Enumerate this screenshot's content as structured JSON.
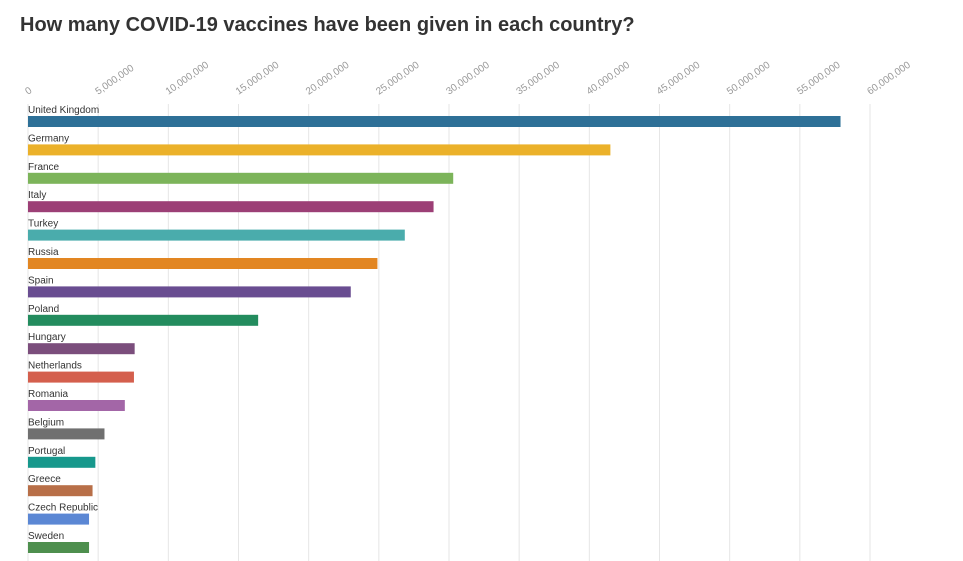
{
  "chart_data": {
    "type": "bar",
    "orientation": "horizontal",
    "title": "How many COVID-19 vaccines have been given in each country?",
    "xlabel": "",
    "ylabel": "",
    "xlim": [
      0,
      60000000
    ],
    "xticks": [
      0,
      5000000,
      10000000,
      15000000,
      20000000,
      25000000,
      30000000,
      35000000,
      40000000,
      45000000,
      50000000,
      55000000,
      60000000
    ],
    "xtick_labels": [
      "0",
      "5,000,000",
      "10,000,000",
      "15,000,000",
      "20,000,000",
      "25,000,000",
      "30,000,000",
      "35,000,000",
      "40,000,000",
      "45,000,000",
      "50,000,000",
      "55,000,000",
      "60,000,000"
    ],
    "grid": true,
    "legend": "none",
    "categories": [
      "United Kingdom",
      "Germany",
      "France",
      "Italy",
      "Turkey",
      "Russia",
      "Spain",
      "Poland",
      "Hungary",
      "Netherlands",
      "Romania",
      "Belgium",
      "Portugal",
      "Greece",
      "Czech Republic",
      "Sweden"
    ],
    "values": [
      57900000,
      41500000,
      30300000,
      28900000,
      26850000,
      24900000,
      23000000,
      16400000,
      7600000,
      7550000,
      6900000,
      5450000,
      4800000,
      4600000,
      4350000,
      4350000
    ],
    "colors": [
      "#2e7097",
      "#ebb12a",
      "#7cb45a",
      "#9c3f76",
      "#4aacac",
      "#e28622",
      "#694d91",
      "#238c5e",
      "#7b4e7c",
      "#d45f4d",
      "#a366a7",
      "#707070",
      "#17988c",
      "#b86f48",
      "#5b87d4",
      "#4e8f4e"
    ]
  }
}
